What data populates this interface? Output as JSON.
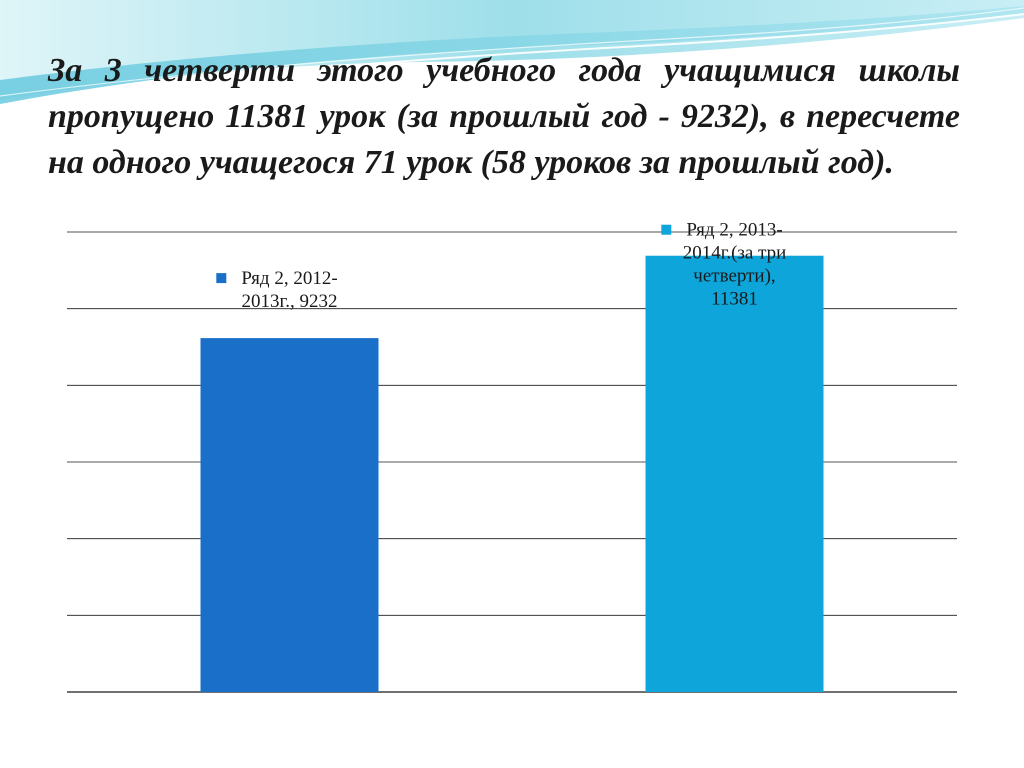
{
  "slide": {
    "title": "За  3 четверти этого учебного  года  учащимися школы  пропущено  11381  урок (за  прошлый  год - 9232),  в  пересчете  на  одного  учащегося   71  урок (58  уроков  за  прошлый  год)."
  },
  "colors": {
    "bar_2012": "#1a70c8",
    "bar_2013": "#0ea5db",
    "gridline": "#1a1a1a",
    "wave_light": "#bfe9f1",
    "wave_mid": "#7fd3e3"
  },
  "chart_data": {
    "type": "bar",
    "categories": [
      "Ряд 2, 2012-2013г.",
      "Ряд 2, 2013-2014г.(за три четверти)"
    ],
    "values": [
      9232,
      11381
    ],
    "data_labels": [
      [
        "Ряд 2, 2012-",
        "2013г., 9232"
      ],
      [
        "Ряд 2, 2013-",
        "2014г.(за три",
        "четверти),",
        "11381"
      ]
    ],
    "title": "",
    "xlabel": "",
    "ylabel": "",
    "ylim": [
      0,
      12000
    ],
    "gridline_step": 2000,
    "grid": true,
    "legend": false
  }
}
